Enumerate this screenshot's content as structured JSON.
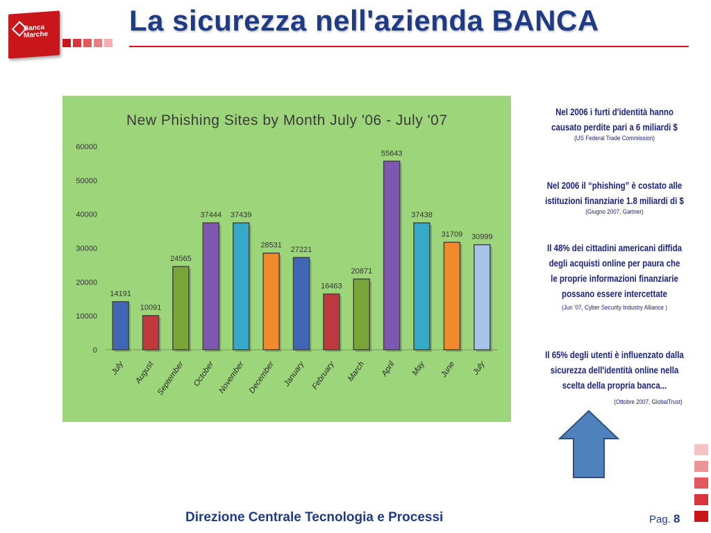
{
  "header": {
    "title": "La sicurezza nell'azienda BANCA",
    "logo_line1": "Banca",
    "logo_line2": "Marche"
  },
  "chart_data": {
    "type": "bar",
    "title": "New Phishing Sites by Month July '06 - July '07",
    "categories": [
      "July",
      "August",
      "September",
      "October",
      "November",
      "December",
      "January",
      "February",
      "March",
      "April",
      "May",
      "June",
      "July"
    ],
    "values": [
      14191,
      10091,
      24565,
      37444,
      37439,
      28531,
      27221,
      16463,
      20871,
      55643,
      37438,
      31709,
      30999
    ],
    "bar_colors": [
      "#3f67b5",
      "#c0393d",
      "#7aa53a",
      "#7e57b1",
      "#36a9c9",
      "#f08a2c",
      "#3f67b5",
      "#c0393d",
      "#7aa53a",
      "#7e57b1",
      "#36a9c9",
      "#f08a2c",
      "#a6c3e8"
    ],
    "yticks": [
      "0",
      "10000",
      "20000",
      "30000",
      "40000",
      "50000",
      "60000"
    ],
    "ylim": [
      0,
      60000
    ],
    "background": "#9dd67a",
    "grid": false,
    "legend": "none"
  },
  "notes": [
    {
      "lines": [
        "Nel 2006 i furti d'identità hanno",
        "causato perdite pari a 6 miliardi $"
      ],
      "source": "(US Federal Trade Commission)"
    },
    {
      "lines": [
        "Nel 2006 il “phishing” è costato alle",
        "istituzioni finanziarie 1.8 miliardi di $"
      ],
      "source": "(Giugno 2007, Gartner)"
    },
    {
      "lines": [
        "Il 48% dei cittadini americani diffida",
        "degli acquisti online per paura che",
        "le proprie informazioni finanziarie",
        "possano essere intercettate"
      ],
      "source": "(Jun '07, Cyber Security Industry Alliance )"
    },
    {
      "lines": [
        "Il 65% degli utenti è influenzato dalla",
        "sicurezza dell'identità online nella",
        "scelta della propria banca..."
      ],
      "source": "(Ottobre 2007, GlobalTrust)"
    }
  ],
  "footer": {
    "department": "Direzione Centrale Tecnologia e Processi",
    "page_label": "Pag.",
    "page_number": "8"
  },
  "colors": {
    "accent_red": "#c8161b",
    "title_blue": "#1f3b86",
    "note_navy": "#1a237e",
    "arrow_blue": "#4f81bd"
  }
}
